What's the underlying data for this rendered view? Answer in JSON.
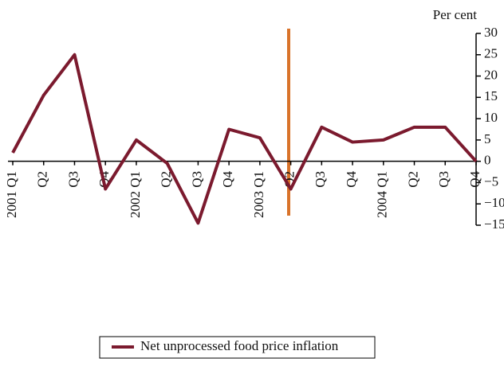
{
  "chart_data": {
    "type": "line",
    "y_axis_label": "Per cent",
    "categories": [
      "2001 Q1",
      "Q2",
      "Q3",
      "Q4",
      "2002 Q1",
      "Q2",
      "Q3",
      "Q4",
      "2003 Q1",
      "Q2",
      "Q3",
      "Q4",
      "2004 Q1",
      "Q2",
      "Q3",
      "Q4"
    ],
    "series": [
      {
        "name": "Net unprocessed food price inflation",
        "color": "#7b1a2e",
        "values": [
          2,
          15.5,
          25,
          -6.5,
          5,
          -0.5,
          -14.5,
          7.5,
          5.5,
          -6.5,
          8,
          4.5,
          5,
          8,
          8,
          0
        ]
      }
    ],
    "ylim": [
      -15,
      30
    ],
    "yticks": [
      {
        "value": -15,
        "label": "−15"
      },
      {
        "value": -10,
        "label": "−10"
      },
      {
        "value": -5,
        "label": "−5"
      },
      0,
      5,
      10,
      15,
      20,
      25,
      30
    ]
  }
}
